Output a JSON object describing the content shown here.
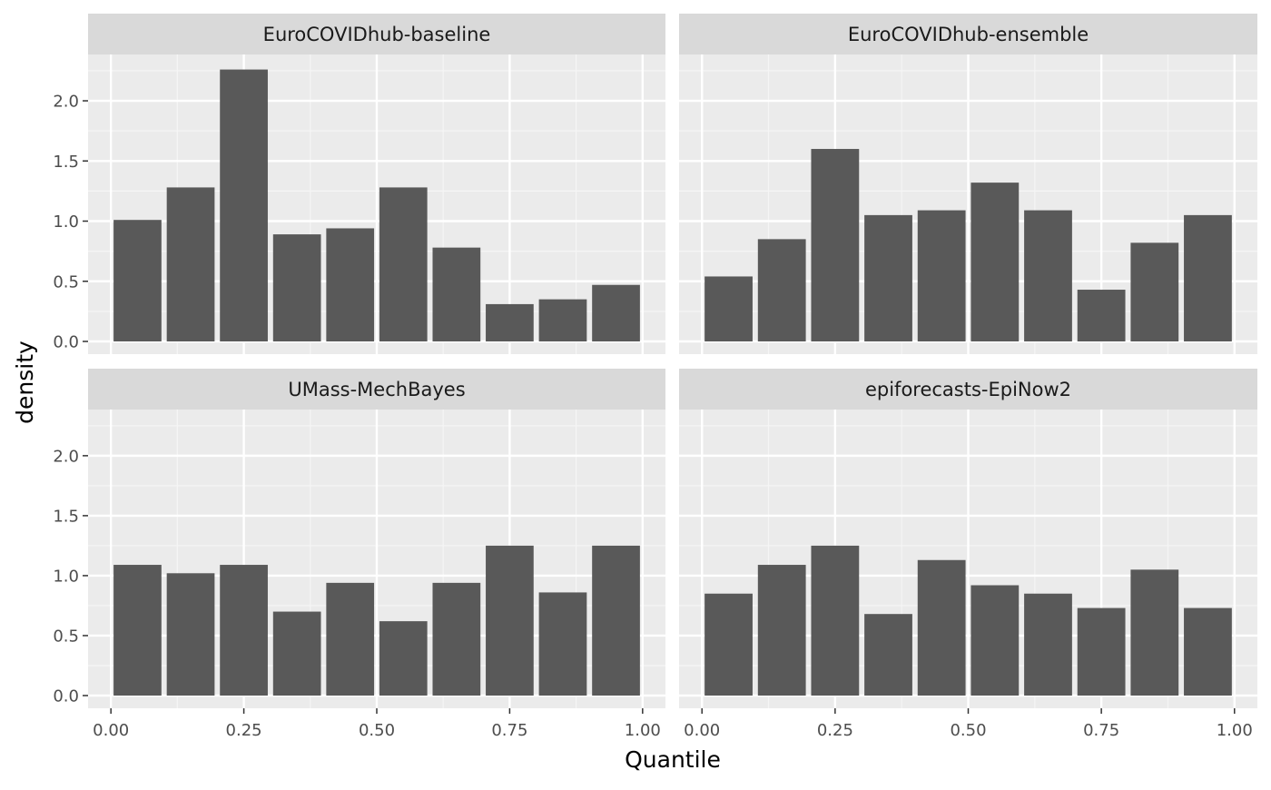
{
  "chart_data": {
    "type": "bar",
    "xlabel": "Quantile",
    "ylabel": "density",
    "xlim": [
      0,
      1
    ],
    "ylim": [
      0,
      2.2
    ],
    "x_ticks": [
      "0.00",
      "0.25",
      "0.50",
      "0.75",
      "1.00"
    ],
    "y_ticks": [
      "0.0",
      "0.5",
      "1.0",
      "1.5",
      "2.0"
    ],
    "grid": true,
    "bins": [
      0.05,
      0.15,
      0.25,
      0.35,
      0.45,
      0.55,
      0.65,
      0.75,
      0.85,
      0.95
    ],
    "bin_width": 0.1,
    "panels": [
      {
        "title": "EuroCOVIDhub-baseline",
        "values": [
          1.01,
          1.28,
          2.26,
          0.89,
          0.94,
          1.28,
          0.78,
          0.31,
          0.35,
          0.47
        ]
      },
      {
        "title": "EuroCOVIDhub-ensemble",
        "values": [
          0.54,
          0.85,
          1.6,
          1.05,
          1.09,
          1.32,
          1.09,
          0.43,
          0.82,
          1.05
        ]
      },
      {
        "title": "UMass-MechBayes",
        "values": [
          1.09,
          1.02,
          1.09,
          0.7,
          0.94,
          0.62,
          0.94,
          1.25,
          0.86,
          1.25
        ]
      },
      {
        "title": "epiforecasts-EpiNow2",
        "values": [
          0.85,
          1.09,
          1.25,
          0.68,
          1.13,
          0.92,
          0.85,
          0.73,
          1.05,
          0.73
        ]
      }
    ],
    "colors": {
      "bar": "#595959",
      "panel_bg": "#ebebeb",
      "strip_bg": "#d9d9d9",
      "grid_major": "#ffffff",
      "grid_minor": "#f5f5f5"
    }
  }
}
